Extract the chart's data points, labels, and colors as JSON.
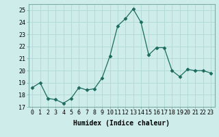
{
  "x": [
    0,
    1,
    2,
    3,
    4,
    5,
    6,
    7,
    8,
    9,
    10,
    11,
    12,
    13,
    14,
    15,
    16,
    17,
    18,
    19,
    20,
    21,
    22,
    23
  ],
  "y": [
    18.6,
    19.0,
    17.7,
    17.6,
    17.3,
    17.7,
    18.6,
    18.4,
    18.5,
    19.4,
    21.2,
    23.7,
    24.3,
    25.1,
    24.0,
    21.3,
    21.9,
    21.9,
    20.0,
    19.5,
    20.1,
    20.0,
    20.0,
    19.8
  ],
  "line_color": "#1a6b5e",
  "marker": "D",
  "marker_size": 2.5,
  "bg_color": "#ceecea",
  "grid_color": "#b0d8d4",
  "xlabel": "Humidex (Indice chaleur)",
  "ylim": [
    17,
    25.5
  ],
  "yticks": [
    17,
    18,
    19,
    20,
    21,
    22,
    23,
    24,
    25
  ],
  "xlim": [
    -0.5,
    23.5
  ],
  "xticks": [
    0,
    1,
    2,
    3,
    4,
    5,
    6,
    7,
    8,
    9,
    10,
    11,
    12,
    13,
    14,
    15,
    16,
    17,
    18,
    19,
    20,
    21,
    22,
    23
  ],
  "xtick_labels": [
    "0",
    "1",
    "2",
    "3",
    "4",
    "5",
    "6",
    "7",
    "8",
    "9",
    "10",
    "11",
    "12",
    "13",
    "14",
    "15",
    "16",
    "17",
    "18",
    "19",
    "20",
    "21",
    "22",
    "23"
  ],
  "label_fontsize": 7,
  "tick_fontsize": 6
}
